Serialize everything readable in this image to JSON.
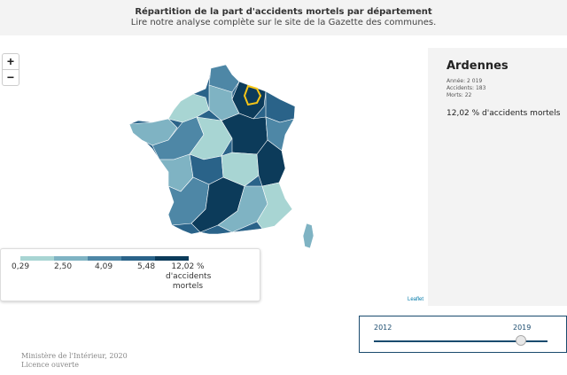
{
  "header": {
    "title": "Répartition de la part d'accidents mortels par département",
    "subtitle": "Lire notre analyse complète sur le site de la Gazette des communes."
  },
  "zoom": {
    "in_label": "+",
    "out_label": "−"
  },
  "info": {
    "department": "Ardennes",
    "annee": "Année: 2 019",
    "accidents": "Accidents: 183",
    "morts": "Morts: 22",
    "pct": "12,02 % d'accidents mortels"
  },
  "legend": {
    "labels": [
      "0,29",
      "2,50",
      "4,09",
      "5,48"
    ],
    "last_label": "12,02 % d'accidents mortels",
    "colors": [
      "#a8d5d3",
      "#7fb3c3",
      "#4e87a6",
      "#2a6389",
      "#0c3b5a"
    ]
  },
  "attribution": "Leaflet",
  "source": {
    "line1": "Ministère de l'Intérieur, 2020",
    "line2": "Licence ouverte"
  },
  "slider": {
    "start": "2012",
    "end": "2019",
    "position": 1.0
  },
  "colors": {
    "highlight": "#f5c518",
    "accent": "#1a4b6e"
  }
}
